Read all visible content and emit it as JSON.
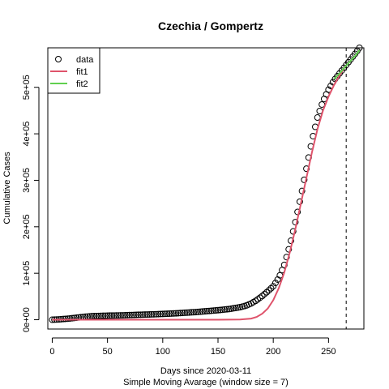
{
  "chart_data": {
    "type": "scatter",
    "title": "Czechia / Gompertz",
    "xlabel": "Days since 2020-03-11",
    "xlabel2": "Simple Moving Avarage (window size = 7)",
    "ylabel": "Cumulative Cases",
    "xlim": [
      -4,
      282
    ],
    "ylim": [
      -20000,
      585000
    ],
    "x_ticks": [
      0,
      50,
      100,
      150,
      200,
      250
    ],
    "x_tick_labels": [
      "0",
      "50",
      "100",
      "150",
      "200",
      "250"
    ],
    "y_ticks": [
      0,
      100000,
      200000,
      300000,
      400000,
      500000
    ],
    "y_tick_labels": [
      "0e+00",
      "1e+05",
      "2e+05",
      "3e+05",
      "4e+05",
      "5e+05"
    ],
    "vline_x": 266,
    "grid": false,
    "legend": {
      "position": "top-left",
      "entries": [
        {
          "label": "data",
          "symbol": "circle",
          "color": "#000000"
        },
        {
          "label": "fit1",
          "symbol": "line",
          "color": "#DF536B"
        },
        {
          "label": "fit2",
          "symbol": "line",
          "color": "#61D04F"
        }
      ]
    },
    "series": [
      {
        "name": "data",
        "style": "points",
        "color": "#000000",
        "x": [
          0,
          5,
          10,
          15,
          20,
          25,
          30,
          35,
          40,
          50,
          60,
          70,
          80,
          90,
          100,
          110,
          120,
          130,
          140,
          150,
          160,
          170,
          175,
          180,
          185,
          190,
          195,
          200,
          205,
          210,
          215,
          220,
          225,
          230,
          235,
          240,
          245,
          250,
          255,
          260,
          265,
          270,
          275,
          278
        ],
        "y": [
          0,
          500,
          1500,
          2500,
          3800,
          5200,
          6500,
          7500,
          8000,
          8800,
          9200,
          10000,
          10800,
          11500,
          12500,
          13500,
          15000,
          16500,
          18500,
          20500,
          23000,
          27000,
          30000,
          35000,
          42000,
          51000,
          61000,
          72000,
          90000,
          118000,
          160000,
          210000,
          265000,
          325000,
          385000,
          435000,
          470000,
          495000,
          515000,
          530000,
          545000,
          560000,
          575000,
          585000
        ]
      },
      {
        "name": "fit1",
        "style": "line",
        "color": "#DF536B",
        "x": [
          0,
          50,
          100,
          150,
          170,
          180,
          185,
          190,
          195,
          200,
          205,
          210,
          215,
          220,
          225,
          230,
          235,
          240,
          245,
          250,
          255,
          260,
          265
        ],
        "y": [
          0,
          0,
          0,
          0,
          400,
          2500,
          6000,
          13000,
          24000,
          42000,
          68000,
          102000,
          145000,
          195000,
          250000,
          305000,
          360000,
          410000,
          450000,
          480000,
          505000,
          525000,
          545000
        ]
      },
      {
        "name": "fit2",
        "style": "line",
        "color": "#61D04F",
        "x": [
          255,
          260,
          265,
          270,
          275,
          278
        ],
        "y": [
          518000,
          530000,
          544000,
          557000,
          570000,
          580000
        ]
      }
    ]
  }
}
